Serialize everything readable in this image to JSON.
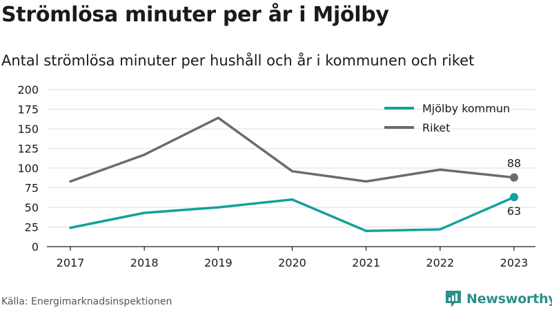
{
  "header": {
    "title": "Strömlösa minuter per år i Mjölby",
    "subtitle": "Antal strömlösa minuter per hushåll och år i kommunen och riket"
  },
  "footer": {
    "source": "Källa: Energimarknadsinspektionen",
    "brand": "Newsworthy"
  },
  "chart_data": {
    "type": "line",
    "title": "",
    "xlabel": "",
    "ylabel": "",
    "x": [
      "2017",
      "2018",
      "2019",
      "2020",
      "2021",
      "2022",
      "2023"
    ],
    "ylim": [
      0,
      200
    ],
    "yticks": [
      0,
      25,
      50,
      75,
      100,
      125,
      150,
      175,
      200
    ],
    "grid": true,
    "legend": "top-right",
    "series": [
      {
        "name": "Mjölby kommun",
        "color": "#12a19a",
        "values": [
          24,
          43,
          50,
          60,
          20,
          22,
          63
        ],
        "end_label": "63"
      },
      {
        "name": "Riket",
        "color": "#6b6b6f",
        "values": [
          83,
          117,
          164,
          96,
          83,
          98,
          88
        ],
        "end_label": "88"
      }
    ]
  }
}
